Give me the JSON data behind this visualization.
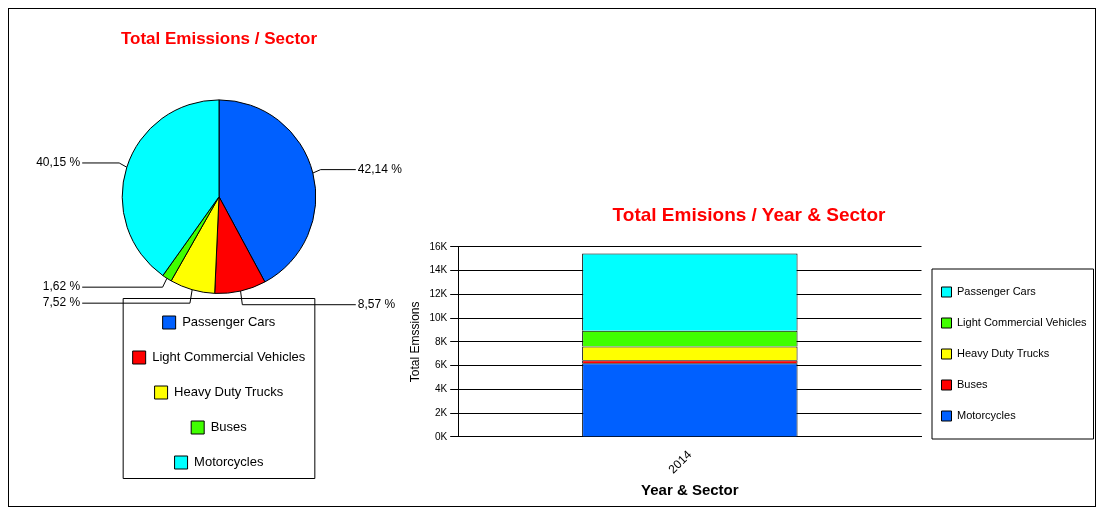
{
  "chart_data": [
    {
      "type": "pie",
      "title": "Total Emissions / Sector",
      "categories": [
        "Passenger Cars",
        "Light Commercial Vehicles",
        "Heavy Duty Trucks",
        "Buses",
        "Motorcycles"
      ],
      "values": [
        42.14,
        8.57,
        7.52,
        1.62,
        40.15
      ],
      "colors": [
        "#0060ff",
        "#ff0000",
        "#ffff00",
        "#40ff00",
        "#00ffff"
      ],
      "value_labels": [
        "42,14 %",
        "8,57 %",
        "7,52 %",
        "1,62 %",
        "40,15 %"
      ],
      "legend": "bottom"
    },
    {
      "type": "bar",
      "stacked": true,
      "title": "Total Emisions / Year & Sector",
      "xlabel": "Year & Sector",
      "ylabel": "Total Emssions",
      "categories": [
        "2014"
      ],
      "series": [
        {
          "name": "Motorcycles",
          "color": "#0060ff",
          "values": [
            6200
          ]
        },
        {
          "name": "Buses",
          "color": "#ff0000",
          "values": [
            250
          ]
        },
        {
          "name": "Heavy Duty Trucks",
          "color": "#ffff00",
          "values": [
            1160
          ]
        },
        {
          "name": "Light Commercial Vehicles",
          "color": "#40ff00",
          "values": [
            1320
          ]
        },
        {
          "name": "Passenger Cars",
          "color": "#00ffff",
          "values": [
            6510
          ]
        }
      ],
      "ylim": [
        0,
        16000
      ],
      "yticks": [
        {
          "value": 0,
          "label": "0K"
        },
        {
          "value": 2000,
          "label": "2K"
        },
        {
          "value": 4000,
          "label": "4K"
        },
        {
          "value": 6000,
          "label": "6K"
        },
        {
          "value": 8000,
          "label": "8K"
        },
        {
          "value": 10000,
          "label": "10K"
        },
        {
          "value": 12000,
          "label": "12K"
        },
        {
          "value": 14000,
          "label": "14K"
        },
        {
          "value": 16000,
          "label": "16K"
        }
      ],
      "grid": "y",
      "legend": "right"
    }
  ]
}
